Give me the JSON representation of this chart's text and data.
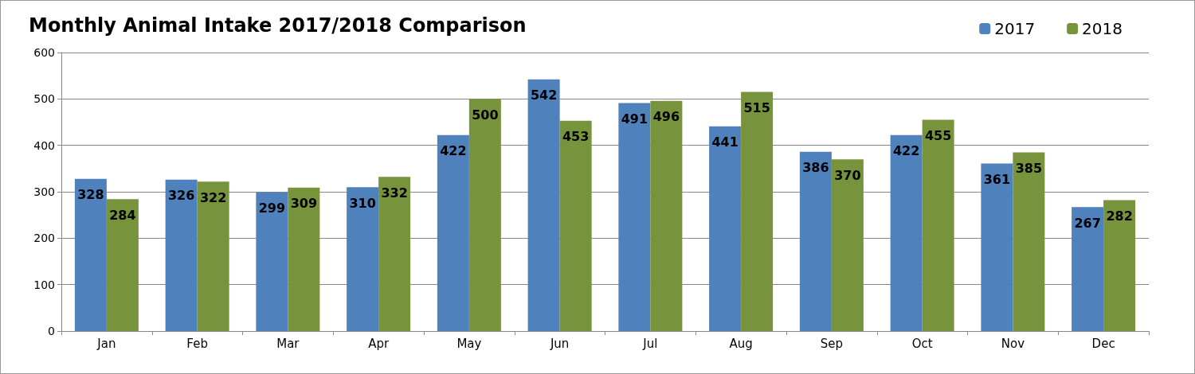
{
  "chart_data": {
    "type": "bar",
    "title": "Monthly Animal Intake 2017/2018 Comparison",
    "categories": [
      "Jan",
      "Feb",
      "Mar",
      "Apr",
      "May",
      "Jun",
      "Jul",
      "Aug",
      "Sep",
      "Oct",
      "Nov",
      "Dec"
    ],
    "series": [
      {
        "name": "2017",
        "color": "#4f81bd",
        "values": [
          328,
          326,
          299,
          310,
          422,
          542,
          491,
          441,
          386,
          422,
          361,
          267
        ]
      },
      {
        "name": "2018",
        "color": "#77933c",
        "values": [
          284,
          322,
          309,
          332,
          500,
          453,
          496,
          515,
          370,
          455,
          385,
          282
        ]
      }
    ],
    "ylim": [
      0,
      600
    ],
    "yticks": [
      0,
      100,
      200,
      300,
      400,
      500,
      600
    ],
    "grid": "y",
    "legend": "top right",
    "data_labels": true
  }
}
